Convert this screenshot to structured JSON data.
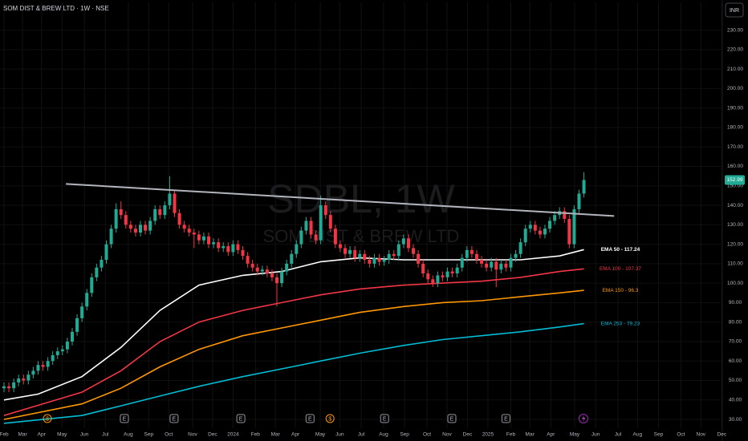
{
  "chart_data": {
    "type": "candlestick",
    "title": "SOM DIST & BREW LTD · 1W · NSE",
    "watermark_symbol": "SDBL, 1W",
    "watermark_name": "SOM DIST & BREW LTD",
    "currency": "INR",
    "up_color": "#22ab94",
    "down_color": "#f23645",
    "grid": true,
    "candles": {
      "open": [
        46,
        47,
        46,
        49,
        51,
        50,
        53,
        55,
        58,
        57,
        60,
        63,
        65,
        66,
        70,
        75,
        82,
        88,
        95,
        103,
        108,
        112,
        120,
        128,
        138,
        135,
        130,
        128,
        126,
        130,
        127,
        132,
        138,
        135,
        140,
        146,
        136,
        130,
        128,
        126,
        125,
        122,
        124,
        120,
        121,
        118,
        119,
        116,
        120,
        117,
        114,
        110,
        108,
        106,
        107,
        105,
        103,
        100,
        106,
        110,
        115,
        120,
        127,
        132,
        125,
        122,
        140,
        135,
        128,
        120,
        118,
        115,
        117,
        113,
        115,
        112,
        110,
        113,
        111,
        112,
        115,
        114,
        120,
        123,
        118,
        115,
        110,
        105,
        102,
        100,
        104,
        103,
        106,
        105,
        108,
        113,
        117,
        115,
        112,
        110,
        108,
        111,
        107,
        110,
        108,
        113,
        115,
        121,
        128,
        130,
        127,
        125,
        128,
        132,
        135,
        137,
        133,
        120,
        138,
        146
      ],
      "high": [
        49,
        49,
        51,
        53,
        53,
        55,
        57,
        60,
        60,
        62,
        65,
        67,
        68,
        72,
        77,
        84,
        90,
        97,
        105,
        110,
        114,
        122,
        130,
        141,
        142,
        137,
        132,
        130,
        132,
        132,
        134,
        140,
        140,
        142,
        155,
        148,
        138,
        132,
        130,
        128,
        127,
        126,
        126,
        123,
        123,
        121,
        121,
        122,
        122,
        119,
        116,
        112,
        110,
        109,
        109,
        107,
        105,
        108,
        112,
        117,
        122,
        129,
        134,
        134,
        127,
        145,
        142,
        137,
        130,
        122,
        120,
        119,
        119,
        117,
        117,
        114,
        115,
        115,
        114,
        117,
        117,
        122,
        125,
        125,
        120,
        117,
        112,
        107,
        104,
        106,
        106,
        108,
        108,
        110,
        115,
        119,
        119,
        117,
        114,
        112,
        113,
        113,
        112,
        112,
        115,
        117,
        123,
        130,
        132,
        132,
        129,
        130,
        134,
        137,
        139,
        139,
        135,
        140,
        148,
        157
      ],
      "low": [
        44,
        44,
        44,
        47,
        48,
        48,
        51,
        53,
        55,
        55,
        58,
        61,
        63,
        64,
        68,
        73,
        80,
        86,
        93,
        101,
        106,
        110,
        118,
        126,
        133,
        128,
        126,
        124,
        124,
        125,
        125,
        130,
        133,
        133,
        138,
        134,
        128,
        126,
        124,
        118,
        120,
        120,
        118,
        118,
        116,
        116,
        114,
        114,
        115,
        112,
        108,
        106,
        104,
        104,
        103,
        101,
        88,
        98,
        104,
        108,
        113,
        118,
        125,
        123,
        120,
        120,
        133,
        126,
        118,
        116,
        113,
        113,
        111,
        111,
        110,
        108,
        108,
        109,
        109,
        110,
        112,
        112,
        118,
        116,
        113,
        108,
        103,
        100,
        98,
        98,
        101,
        101,
        103,
        103,
        106,
        111,
        113,
        110,
        108,
        106,
        106,
        98,
        105,
        106,
        106,
        111,
        113,
        119,
        126,
        125,
        123,
        123,
        126,
        130,
        133,
        131,
        118,
        118,
        136,
        144
      ],
      "close": [
        47,
        46,
        49,
        51,
        50,
        53,
        55,
        58,
        57,
        60,
        63,
        65,
        66,
        70,
        75,
        82,
        88,
        95,
        103,
        108,
        112,
        120,
        128,
        138,
        135,
        130,
        128,
        126,
        130,
        127,
        132,
        138,
        135,
        140,
        146,
        136,
        130,
        128,
        126,
        125,
        122,
        124,
        120,
        121,
        118,
        119,
        116,
        120,
        117,
        114,
        110,
        108,
        106,
        107,
        105,
        103,
        100,
        106,
        110,
        115,
        120,
        127,
        132,
        125,
        122,
        140,
        135,
        128,
        120,
        118,
        115,
        117,
        113,
        115,
        112,
        110,
        113,
        111,
        112,
        115,
        114,
        120,
        123,
        118,
        115,
        110,
        105,
        102,
        100,
        104,
        103,
        106,
        105,
        108,
        113,
        117,
        115,
        112,
        110,
        108,
        111,
        107,
        110,
        108,
        113,
        115,
        121,
        128,
        130,
        127,
        125,
        128,
        132,
        135,
        137,
        133,
        120,
        138,
        146,
        152.99
      ]
    },
    "last_price": 152.99,
    "series": [
      {
        "name": "EMA 50 - 117.24",
        "color": "#ffffff",
        "x": [
          0,
          7,
          16,
          24,
          32,
          40,
          49,
          57,
          65,
          73,
          82,
          90,
          98,
          106,
          114,
          119
        ],
        "values": [
          40,
          43,
          52,
          67,
          86,
          99,
          104,
          106,
          111,
          113,
          112,
          112,
          112,
          112,
          114,
          117.24
        ]
      },
      {
        "name": "EMA 100 - 107.37",
        "color": "#f23645",
        "x": [
          0,
          16,
          24,
          32,
          40,
          49,
          57,
          65,
          73,
          82,
          90,
          98,
          106,
          114,
          119
        ],
        "values": [
          32,
          44,
          55,
          70,
          80,
          86,
          90,
          94,
          97,
          99,
          100,
          101,
          103,
          106,
          107.37
        ]
      },
      {
        "name": "EMA 150 - 96.3",
        "color": "#ff9800",
        "x": [
          0,
          16,
          24,
          32,
          40,
          49,
          57,
          65,
          73,
          82,
          90,
          98,
          106,
          114,
          119
        ],
        "values": [
          30,
          38,
          46,
          57,
          66,
          73,
          77,
          81,
          85,
          88,
          90,
          91,
          93,
          95,
          96.3
        ]
      },
      {
        "name": "EMA 253 - 79.23",
        "color": "#00bcd4",
        "x": [
          0,
          16,
          24,
          32,
          40,
          49,
          57,
          65,
          73,
          82,
          90,
          98,
          106,
          114,
          119
        ],
        "values": [
          28,
          32,
          37,
          42,
          47,
          52,
          56,
          60,
          64,
          68,
          71,
          73,
          75,
          77.5,
          79.23
        ]
      }
    ],
    "trendline": {
      "color": "#b2b5be",
      "x": [
        12.7,
        125.2
      ],
      "values": [
        151,
        134.5
      ]
    },
    "events": [
      {
        "x": 8.9,
        "label": "$"
      },
      {
        "x": 24.7,
        "label": "E"
      },
      {
        "x": 34.9,
        "label": "E"
      },
      {
        "x": 48.6,
        "label": "E"
      },
      {
        "x": 62.8,
        "label": "E"
      },
      {
        "x": 66.9,
        "label": "$"
      },
      {
        "x": 78.1,
        "label": "E"
      },
      {
        "x": 91.9,
        "label": "E"
      },
      {
        "x": 103,
        "label": "E"
      }
    ],
    "flash_event_x": 118.9,
    "xlim": [
      -0.82,
      147.4
    ],
    "ylim": [
      25.5,
      236
    ],
    "xticks": [
      {
        "value": 0,
        "label": "Feb"
      },
      {
        "value": 3.8,
        "label": "Mar"
      },
      {
        "value": 7.7,
        "label": "Apr"
      },
      {
        "value": 11.9,
        "label": "May"
      },
      {
        "value": 16.5,
        "label": "Jun"
      },
      {
        "value": 20.8,
        "label": "Jul"
      },
      {
        "value": 25.5,
        "label": "Aug"
      },
      {
        "value": 29.7,
        "label": "Sep"
      },
      {
        "value": 33.8,
        "label": "Oct"
      },
      {
        "value": 38.7,
        "label": "Nov"
      },
      {
        "value": 42.8,
        "label": "Dec"
      },
      {
        "value": 47,
        "label": "2024"
      },
      {
        "value": 51.6,
        "label": "Feb"
      },
      {
        "value": 55.7,
        "label": "Mar"
      },
      {
        "value": 59.8,
        "label": "Apr"
      },
      {
        "value": 64.9,
        "label": "May"
      },
      {
        "value": 68.9,
        "label": "Jun"
      },
      {
        "value": 73.3,
        "label": "Jul"
      },
      {
        "value": 77.9,
        "label": "Aug"
      },
      {
        "value": 82.2,
        "label": "Sep"
      },
      {
        "value": 86.8,
        "label": "Oct"
      },
      {
        "value": 90.9,
        "label": "Nov"
      },
      {
        "value": 95.1,
        "label": "Dec"
      },
      {
        "value": 99.3,
        "label": "2025"
      },
      {
        "value": 104,
        "label": "Feb"
      },
      {
        "value": 107.9,
        "label": "Mar"
      },
      {
        "value": 112.2,
        "label": "Apr"
      },
      {
        "value": 117.1,
        "label": "May"
      },
      {
        "value": 121.4,
        "label": "Jun"
      },
      {
        "value": 126,
        "label": "Jul"
      },
      {
        "value": 130,
        "label": "Aug"
      },
      {
        "value": 134.3,
        "label": "Sep"
      },
      {
        "value": 138.9,
        "label": "Oct"
      },
      {
        "value": 143,
        "label": "Nov"
      },
      {
        "value": 147.3,
        "label": "Dec"
      }
    ],
    "yticks": [
      {
        "value": 30,
        "label": "30.00"
      },
      {
        "value": 40,
        "label": "40.00"
      },
      {
        "value": 50,
        "label": "50.00"
      },
      {
        "value": 60,
        "label": "60.00"
      },
      {
        "value": 70,
        "label": "70.00"
      },
      {
        "value": 80,
        "label": "80.00"
      },
      {
        "value": 90,
        "label": "90.00"
      },
      {
        "value": 100,
        "label": "100.00"
      },
      {
        "value": 110,
        "label": "110.00"
      },
      {
        "value": 120,
        "label": "120.00"
      },
      {
        "value": 130,
        "label": "130.00"
      },
      {
        "value": 140,
        "label": "140.00"
      },
      {
        "value": 150,
        "label": "150.00"
      },
      {
        "value": 160,
        "label": "160.00"
      },
      {
        "value": 170,
        "label": "170.00"
      },
      {
        "value": 180,
        "label": "180.00"
      },
      {
        "value": 190,
        "label": "190.00"
      },
      {
        "value": 200,
        "label": "200.00"
      },
      {
        "value": 210,
        "label": "210.00"
      },
      {
        "value": 220,
        "label": "220.00"
      },
      {
        "value": 230,
        "label": "230.00"
      }
    ]
  }
}
